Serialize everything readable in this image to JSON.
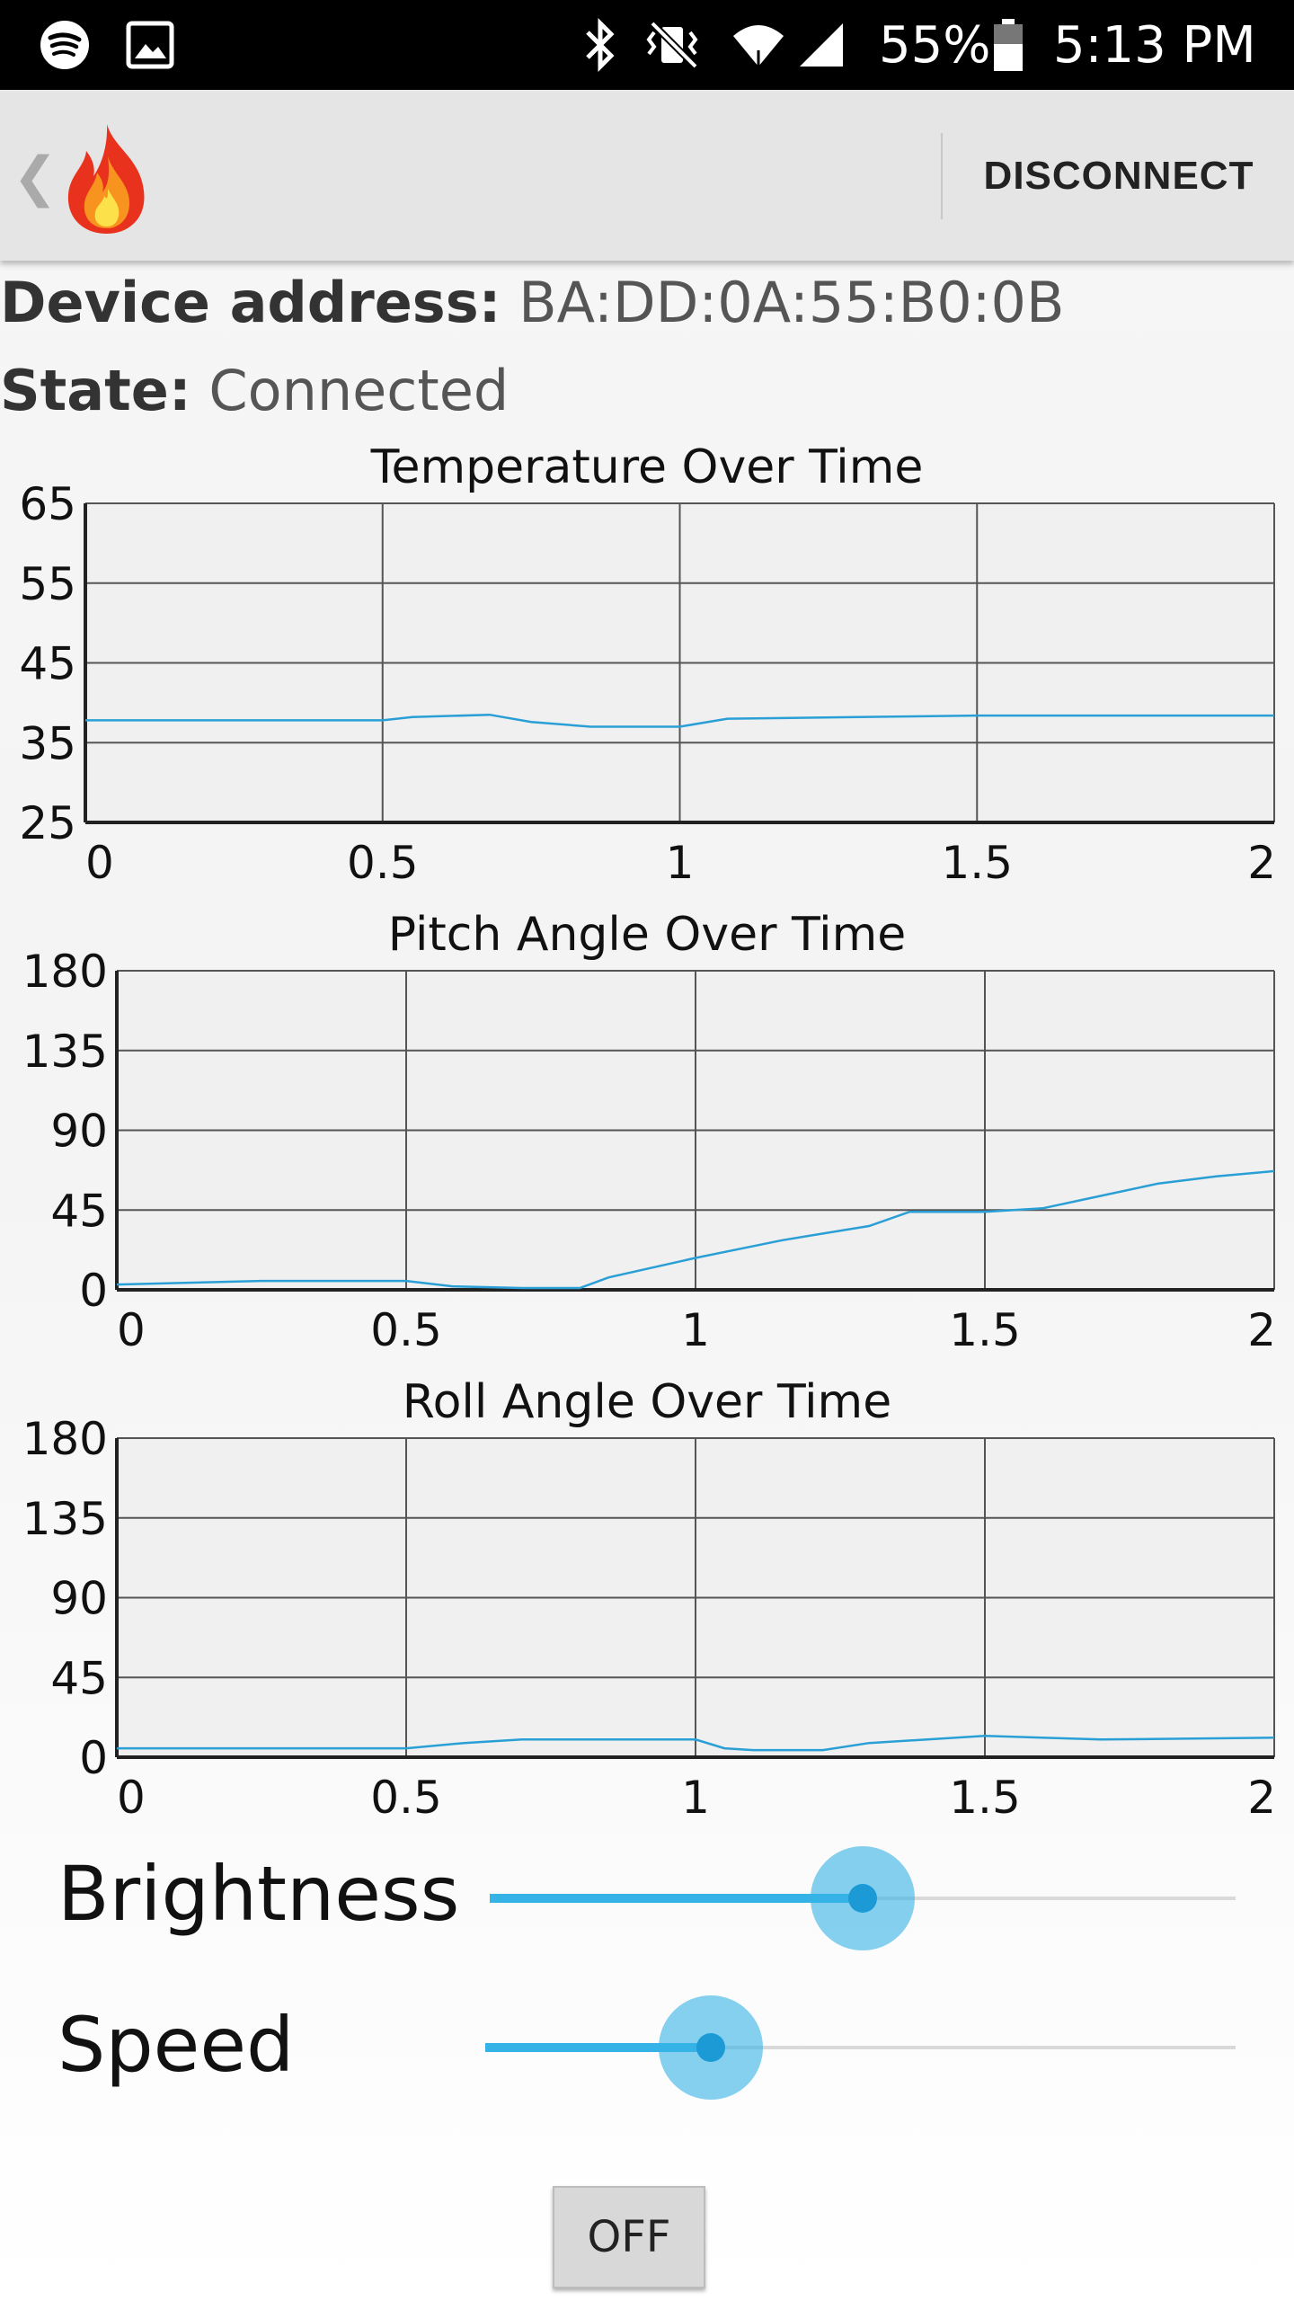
{
  "status_bar": {
    "battery": "55%",
    "time": "5:13 PM",
    "icons": [
      "spotify-icon",
      "gallery-icon",
      "bluetooth-icon",
      "vibrate-icon",
      "wifi-icon",
      "signal-icon",
      "battery-icon"
    ]
  },
  "action_bar": {
    "back_glyph": "❮",
    "disconnect_label": "DISCONNECT"
  },
  "device": {
    "address_label": "Device address:",
    "address_value": "BA:DD:0A:55:B0:0B",
    "state_label": "State:",
    "state_value": "Connected"
  },
  "colors": {
    "series": "#2a9fd6",
    "accent": "#35b2e6",
    "grid": "#555555"
  },
  "chart_data": [
    {
      "type": "line",
      "title": "Temperature Over Time",
      "xlabel": "",
      "ylabel": "",
      "xlim": [
        0,
        2
      ],
      "ylim": [
        25,
        65
      ],
      "x_ticks": [
        "0",
        "0.5",
        "1",
        "1.5",
        "2"
      ],
      "y_ticks": [
        "65",
        "55",
        "45",
        "35",
        "25"
      ],
      "grid": true,
      "series": [
        {
          "x": [
            0,
            0.5,
            0.55,
            0.68,
            0.75,
            0.85,
            1.0,
            1.08,
            1.3,
            1.5,
            2.0
          ],
          "y": [
            37.8,
            37.8,
            38.2,
            38.5,
            37.6,
            37.0,
            37.0,
            38.0,
            38.2,
            38.4,
            38.4
          ]
        }
      ]
    },
    {
      "type": "line",
      "title": "Pitch Angle Over Time",
      "xlabel": "",
      "ylabel": "",
      "xlim": [
        0,
        2
      ],
      "ylim": [
        0,
        180
      ],
      "x_ticks": [
        "0",
        "0.5",
        "1",
        "1.5",
        "2"
      ],
      "y_ticks": [
        "180",
        "135",
        "90",
        "45",
        "0"
      ],
      "grid": true,
      "series": [
        {
          "x": [
            0,
            0.25,
            0.5,
            0.58,
            0.7,
            0.8,
            0.85,
            1.0,
            1.15,
            1.3,
            1.37,
            1.5,
            1.6,
            1.7,
            1.8,
            1.9,
            2.0
          ],
          "y": [
            3,
            5,
            5,
            2,
            1,
            1,
            7,
            18,
            28,
            36,
            44,
            44,
            46,
            53,
            60,
            64,
            67
          ]
        }
      ]
    },
    {
      "type": "line",
      "title": "Roll Angle Over Time",
      "xlabel": "",
      "ylabel": "",
      "xlim": [
        0,
        2
      ],
      "ylim": [
        0,
        180
      ],
      "x_ticks": [
        "0",
        "0.5",
        "1",
        "1.5",
        "2"
      ],
      "y_ticks": [
        "180",
        "135",
        "90",
        "45",
        "0"
      ],
      "grid": true,
      "series": [
        {
          "x": [
            0,
            0.5,
            0.6,
            0.7,
            0.85,
            1.0,
            1.05,
            1.1,
            1.22,
            1.3,
            1.5,
            1.7,
            2.0
          ],
          "y": [
            5,
            5,
            8,
            10,
            10,
            10,
            5,
            4,
            4,
            8,
            12,
            10,
            11
          ]
        }
      ]
    }
  ],
  "sliders": [
    {
      "label": "Brightness",
      "value": 0.5
    },
    {
      "label": "Speed",
      "value": 0.3
    }
  ],
  "off_button": {
    "label": "OFF"
  }
}
